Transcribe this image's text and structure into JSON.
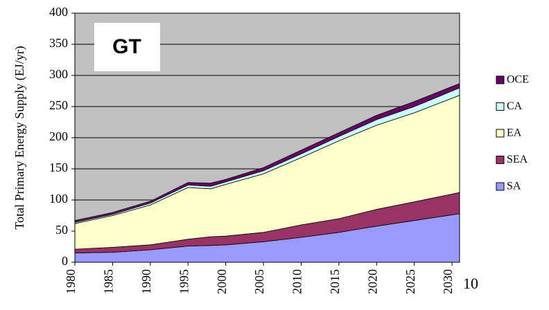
{
  "chart_data": {
    "type": "stacked_area",
    "ylabel": "Total Primary Energy Supply (EJ/yr)",
    "annotations": [
      "GT",
      "10"
    ],
    "x": [
      1980,
      1985,
      1990,
      1995,
      1998,
      2000,
      2005,
      2010,
      2015,
      2020,
      2025,
      2031
    ],
    "xlim": [
      1980,
      2031
    ],
    "xticks": [
      1980,
      1985,
      1990,
      1995,
      2000,
      2005,
      2010,
      2015,
      2020,
      2025,
      2030
    ],
    "ylim": [
      0,
      400
    ],
    "yticks": [
      0,
      50,
      100,
      150,
      200,
      250,
      300,
      350,
      400
    ],
    "grid": true,
    "legend": "right",
    "series": [
      {
        "name": "SA",
        "color": "#9999ff",
        "values": [
          15,
          16,
          20,
          26,
          27,
          28,
          33,
          40,
          48,
          58,
          67,
          78
        ]
      },
      {
        "name": "SEA",
        "color": "#993366",
        "values": [
          6,
          8,
          8,
          11,
          14,
          14,
          15,
          20,
          22,
          27,
          30,
          34
        ]
      },
      {
        "name": "EA",
        "color": "#ffffcc",
        "values": [
          41,
          51,
          64,
          83,
          77,
          83,
          94,
          108,
          125,
          135,
          143,
          156
        ]
      },
      {
        "name": "CA",
        "color": "#ccffff",
        "values": [
          2,
          2,
          3,
          4,
          4,
          4,
          5,
          6,
          7,
          9,
          10,
          12
        ]
      },
      {
        "name": "OCE",
        "color": "#660066",
        "values": [
          3,
          3,
          3,
          4,
          5,
          4,
          5,
          6,
          6,
          7,
          8,
          7
        ]
      }
    ]
  }
}
